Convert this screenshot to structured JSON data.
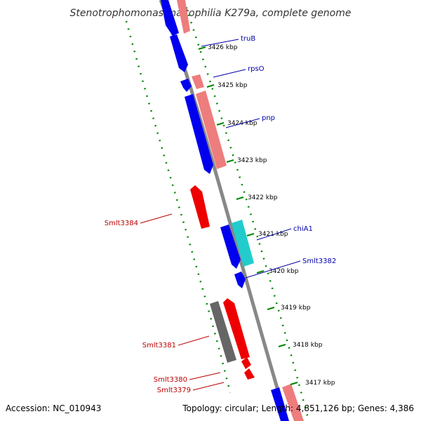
{
  "title": "Stenotrophomonas maltophilia K279a, complete genome",
  "footer": {
    "accession": "Accession: NC_010943",
    "summary": "Topology: circular; Length: 4,851,126 bp; Genes: 4,386"
  },
  "colors": {
    "backbone": "#777777",
    "forward_cds": "#0000ee",
    "forward_rna": "#ee7d7d",
    "reverse_cds": "#ee0000",
    "reverse_other": "#666666",
    "other_feature": "#22cccc",
    "forward_label": "#0000aa",
    "reverse_label": "#bb0000",
    "dotted_ring": "#008800"
  },
  "tick_labels": [
    "3426 kbp",
    "3425 kbp",
    "3424 kbp",
    "3423 kbp",
    "3422 kbp",
    "3421 kbp",
    "3420 kbp",
    "3419 kbp",
    "3418 kbp",
    "3417 kbp"
  ],
  "genes_forward": [
    {
      "name": "truB",
      "label": "truB"
    },
    {
      "name": "rpsO",
      "label": "rpsO"
    },
    {
      "name": "pnp",
      "label": "pnp"
    },
    {
      "name": "chiA1",
      "label": "chiA1"
    },
    {
      "name": "Smlt3382",
      "label": "Smlt3382"
    }
  ],
  "genes_reverse": [
    {
      "name": "Smlt3384",
      "label": "Smlt3384"
    },
    {
      "name": "Smlt3381",
      "label": "Smlt3381"
    },
    {
      "name": "Smlt3380",
      "label": "Smlt3380"
    },
    {
      "name": "Smlt3379",
      "label": "Smlt3379"
    }
  ]
}
